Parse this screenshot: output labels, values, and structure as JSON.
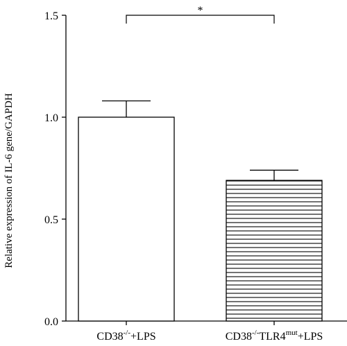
{
  "chart_data": {
    "type": "bar",
    "title": "",
    "xlabel": "",
    "ylabel": "Relative expression of IL-6 gene/GAPDH",
    "ylim": [
      0,
      1.5
    ],
    "yticks": [
      0.0,
      0.5,
      1.0,
      1.5
    ],
    "ytick_labels": [
      "0.0",
      "0.5",
      "1.0",
      "1.5"
    ],
    "categories": [
      {
        "base": "CD38",
        "sup1": "-/-",
        "mid": "",
        "sup2": "",
        "suffix": "+LPS"
      },
      {
        "base": "CD38",
        "sup1": "-/-",
        "mid": "TLR4",
        "sup2": "mut",
        "suffix": "+LPS"
      }
    ],
    "values": [
      1.0,
      0.69
    ],
    "errors": [
      0.08,
      0.05
    ],
    "fills": [
      "solid-white",
      "horizontal-hatch"
    ],
    "significance": {
      "from": 0,
      "to": 1,
      "label": "*"
    },
    "grid": false,
    "colors": {
      "bar_stroke": "#000000",
      "bar_fill": "#ffffff",
      "axis": "#000000"
    }
  }
}
